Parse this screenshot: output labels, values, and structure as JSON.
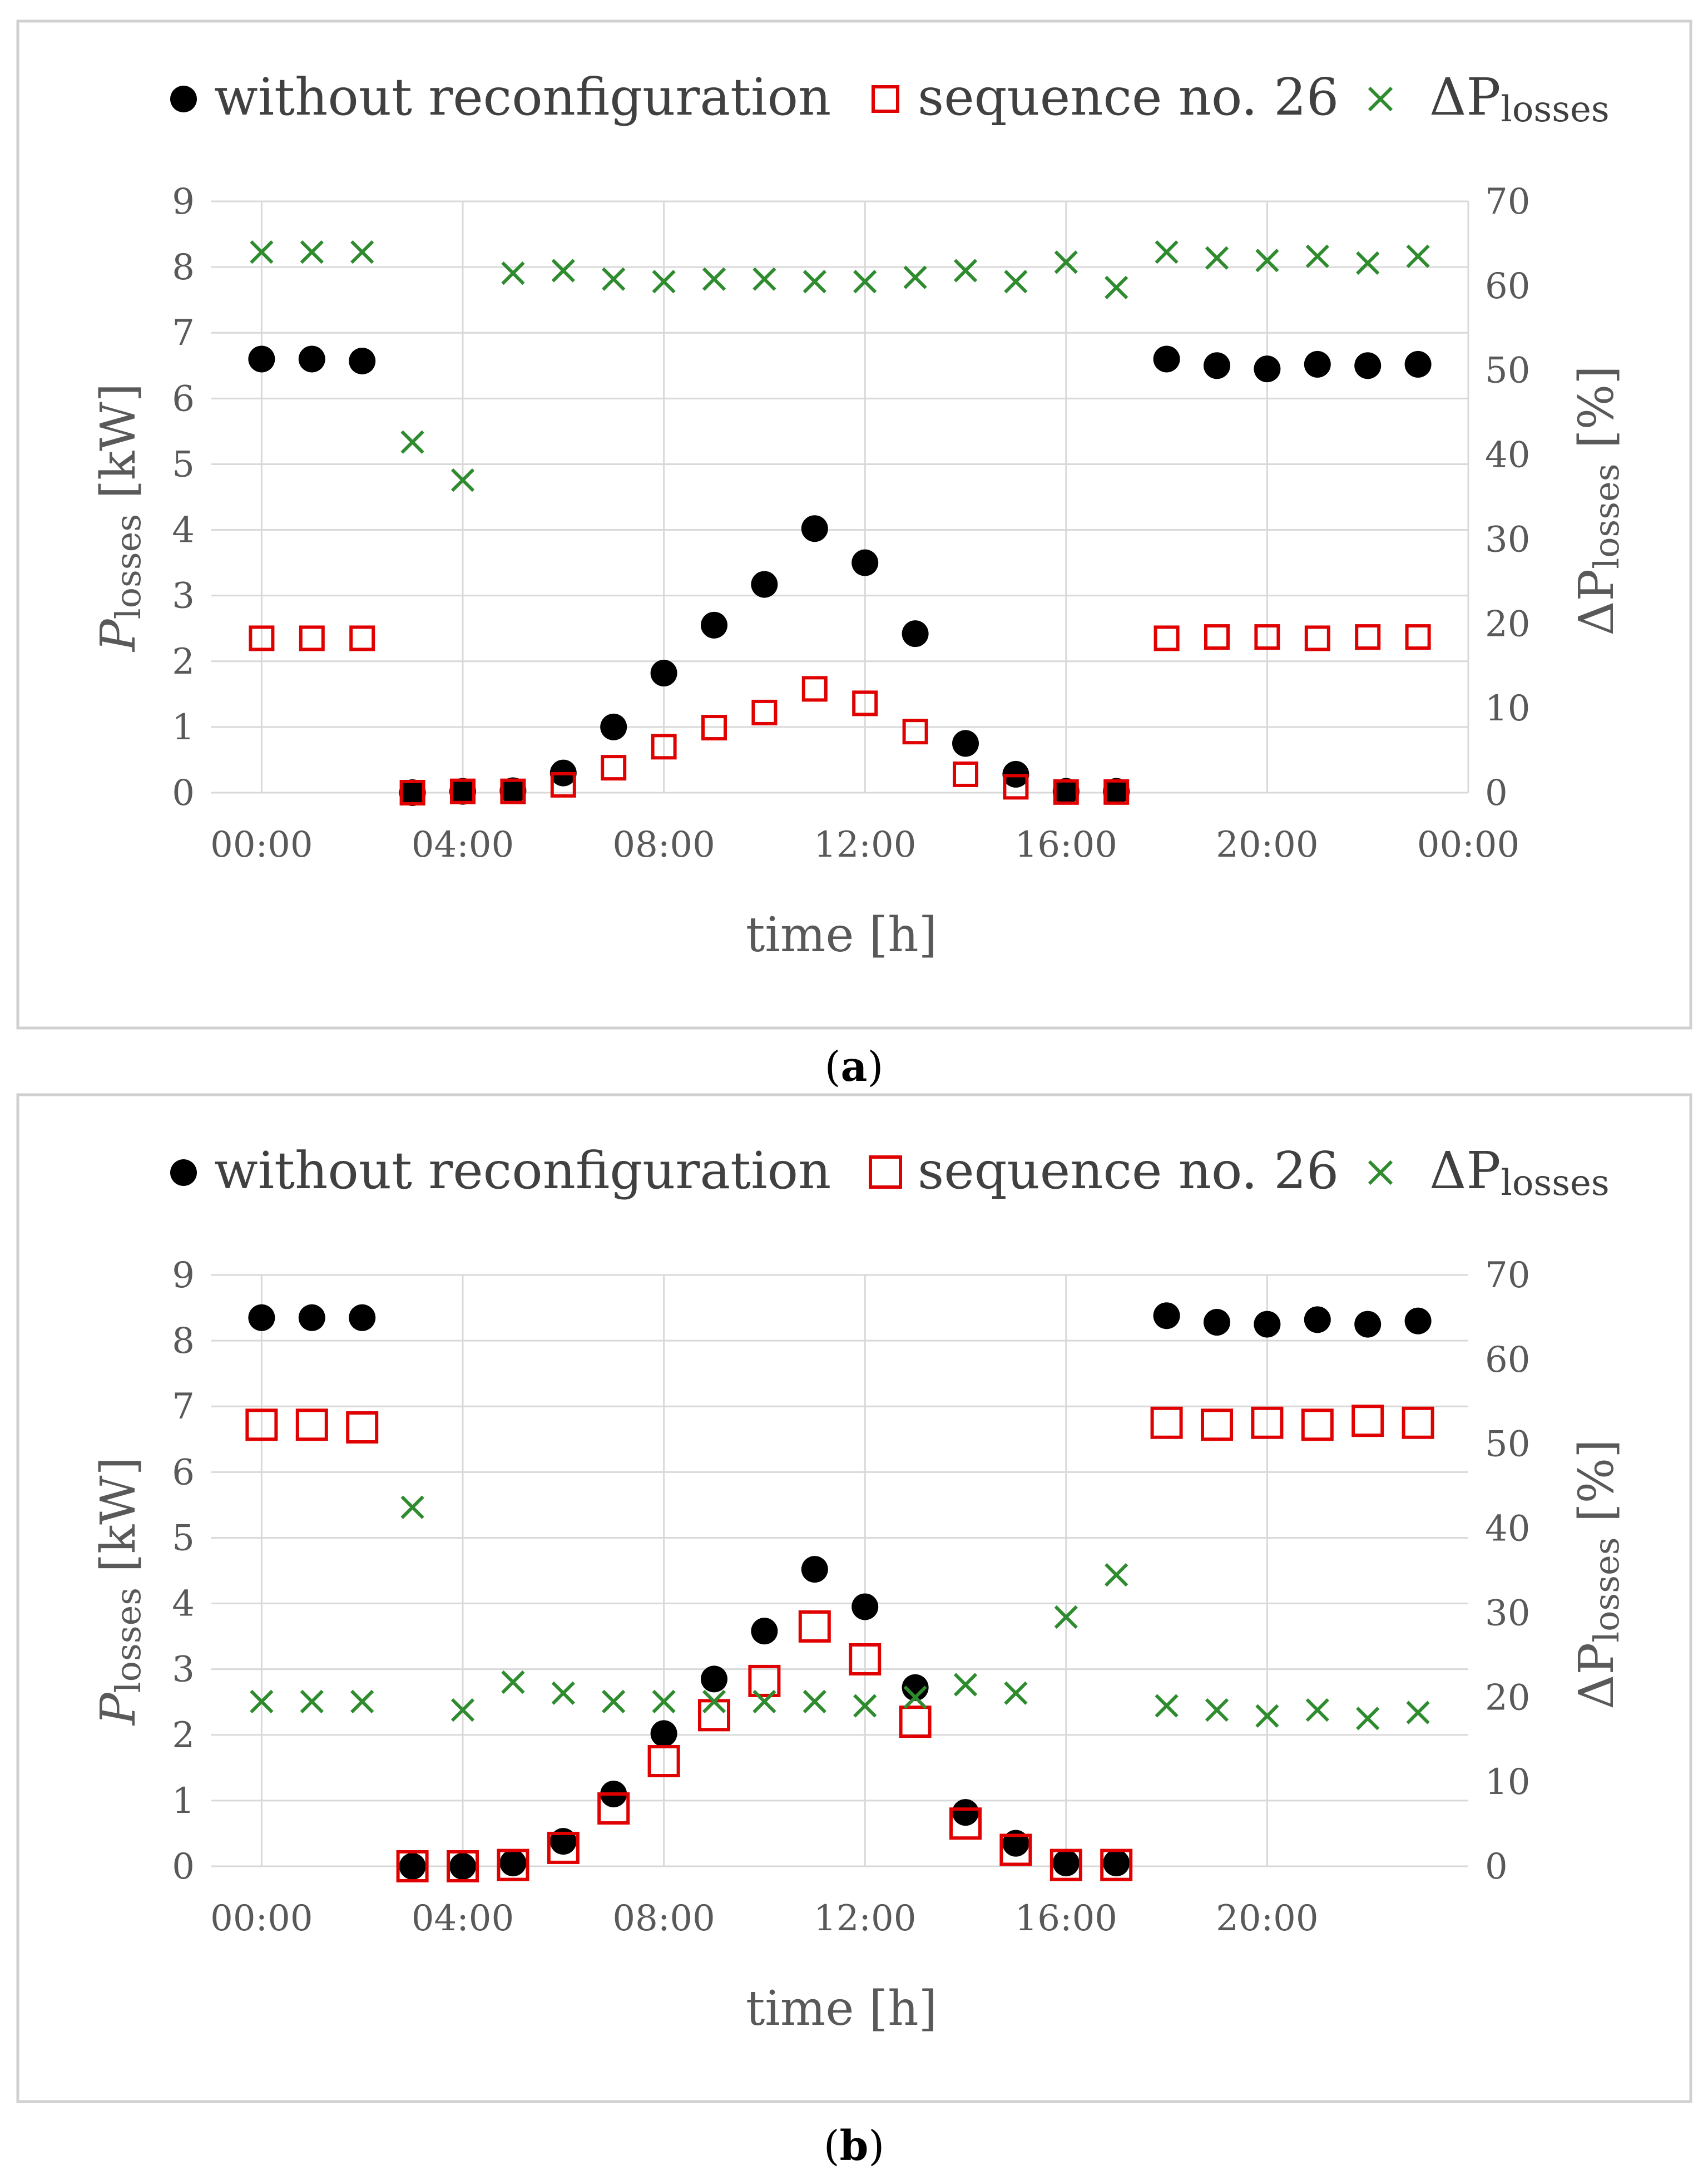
{
  "figure": {
    "captions": [
      {
        "open": "(",
        "letter": "a",
        "close": ")"
      },
      {
        "open": "(",
        "letter": "b",
        "close": ")"
      }
    ]
  },
  "colors": {
    "black_series": "#000000",
    "red_series": "#e00000",
    "green_series": "#2e8b2e"
  },
  "chart_data": [
    {
      "panel": "a",
      "type": "scatter",
      "legend": [
        {
          "label": "without reconfiguration",
          "marker": "filled-circle",
          "color": "#000000"
        },
        {
          "label": "sequence no. 26",
          "marker": "open-square",
          "color": "#e00000"
        },
        {
          "label_prefix": "ΔP",
          "label_sub": "losses",
          "marker": "x-cross",
          "color": "#2e8b2e"
        }
      ],
      "legend_placement": "top",
      "xlabel": "time [h]",
      "ylabel_left_prefix": "P",
      "ylabel_left_sub": "losses",
      "ylabel_left_suffix": " [kW]",
      "ylabel_right_prefix": "ΔP",
      "ylabel_right_sub": "losses",
      "ylabel_right_suffix": " [%]",
      "x_range_hours": [
        -1.0,
        24
      ],
      "x_ticks": [
        0,
        4,
        8,
        12,
        16,
        20,
        24
      ],
      "x_tick_labels": [
        "00:00",
        "04:00",
        "08:00",
        "12:00",
        "16:00",
        "20:00",
        "00:00"
      ],
      "ylim_left": [
        0,
        9
      ],
      "y_ticks_left": [
        "0",
        "1",
        "2",
        "3",
        "4",
        "5",
        "6",
        "7",
        "8",
        "9"
      ],
      "ylim_right": [
        0,
        70
      ],
      "y_ticks_right": [
        "0",
        "10",
        "20",
        "30",
        "40",
        "50",
        "60",
        "70"
      ],
      "grid": true,
      "hours": [
        0,
        1,
        2,
        3,
        4,
        5,
        6,
        7,
        8,
        9,
        10,
        11,
        12,
        13,
        14,
        15,
        16,
        17,
        18,
        19,
        20,
        21,
        22,
        23
      ],
      "series": [
        {
          "name": "without reconfiguration",
          "axis": "left",
          "values": [
            6.6,
            6.6,
            6.57,
            0.0,
            0.02,
            0.03,
            0.3,
            1.0,
            1.82,
            2.55,
            3.17,
            4.02,
            3.5,
            2.42,
            0.75,
            0.28,
            0.02,
            0.02,
            6.6,
            6.5,
            6.45,
            6.52,
            6.5,
            6.52
          ]
        },
        {
          "name": "sequence no. 26",
          "axis": "left",
          "values": [
            2.35,
            2.35,
            2.35,
            0.0,
            0.02,
            0.02,
            0.12,
            0.38,
            0.7,
            0.99,
            1.22,
            1.58,
            1.36,
            0.93,
            0.28,
            0.09,
            0.01,
            0.01,
            2.35,
            2.37,
            2.37,
            2.35,
            2.37,
            2.37
          ]
        },
        {
          "name": "ΔP losses",
          "axis": "right",
          "values": [
            64,
            64,
            64,
            41.5,
            37,
            61.5,
            61.8,
            60.8,
            60.5,
            60.8,
            60.8,
            60.5,
            60.5,
            61,
            61.8,
            60.5,
            62.8,
            59.8,
            64,
            63.3,
            63,
            63.5,
            62.7,
            63.5
          ]
        }
      ]
    },
    {
      "panel": "b",
      "type": "scatter",
      "legend": [
        {
          "label": "without reconfiguration",
          "marker": "filled-circle",
          "color": "#000000"
        },
        {
          "label": "sequence no. 26",
          "marker": "open-square",
          "color": "#e00000"
        },
        {
          "label_prefix": "ΔP",
          "label_sub": "losses",
          "marker": "x-cross",
          "color": "#2e8b2e"
        }
      ],
      "legend_placement": "top",
      "xlabel": "time [h]",
      "ylabel_left_prefix": "P",
      "ylabel_left_sub": "losses",
      "ylabel_left_suffix": " [kW]",
      "ylabel_right_prefix": "ΔP",
      "ylabel_right_sub": "losses",
      "ylabel_right_suffix": " [%]",
      "x_range_hours": [
        -1.0,
        24
      ],
      "x_ticks": [
        0,
        4,
        8,
        12,
        16,
        20
      ],
      "x_tick_labels": [
        "00:00",
        "04:00",
        "08:00",
        "12:00",
        "16:00",
        "20:00"
      ],
      "ylim_left": [
        0,
        9
      ],
      "y_ticks_left": [
        "0",
        "1",
        "2",
        "3",
        "4",
        "5",
        "6",
        "7",
        "8",
        "9"
      ],
      "ylim_right": [
        0,
        70
      ],
      "y_ticks_right": [
        "0",
        "10",
        "20",
        "30",
        "40",
        "50",
        "60",
        "70"
      ],
      "grid": true,
      "hours": [
        0,
        1,
        2,
        3,
        4,
        5,
        6,
        7,
        8,
        9,
        10,
        11,
        12,
        13,
        14,
        15,
        16,
        17,
        18,
        19,
        20,
        21,
        22,
        23
      ],
      "series": [
        {
          "name": "without reconfiguration",
          "axis": "left",
          "values": [
            8.35,
            8.35,
            8.35,
            0.0,
            0.0,
            0.05,
            0.38,
            1.1,
            2.02,
            2.85,
            3.58,
            4.52,
            3.95,
            2.72,
            0.82,
            0.35,
            0.05,
            0.05,
            8.38,
            8.28,
            8.25,
            8.32,
            8.25,
            8.3
          ]
        },
        {
          "name": "sequence no. 26",
          "axis": "left",
          "values": [
            6.72,
            6.72,
            6.68,
            0.0,
            0.0,
            0.02,
            0.28,
            0.88,
            1.6,
            2.3,
            2.82,
            3.65,
            3.15,
            2.2,
            0.65,
            0.25,
            0.02,
            0.02,
            6.75,
            6.72,
            6.75,
            6.72,
            6.78,
            6.75
          ]
        },
        {
          "name": "ΔP losses",
          "axis": "right",
          "values": [
            19.5,
            19.5,
            19.5,
            42.5,
            18.5,
            21.8,
            20.5,
            19.5,
            19.5,
            19.5,
            19.5,
            19.5,
            19,
            20,
            21.5,
            20.5,
            29.5,
            34.5,
            19,
            18.5,
            17.8,
            18.5,
            17.5,
            18.2
          ]
        }
      ]
    }
  ]
}
